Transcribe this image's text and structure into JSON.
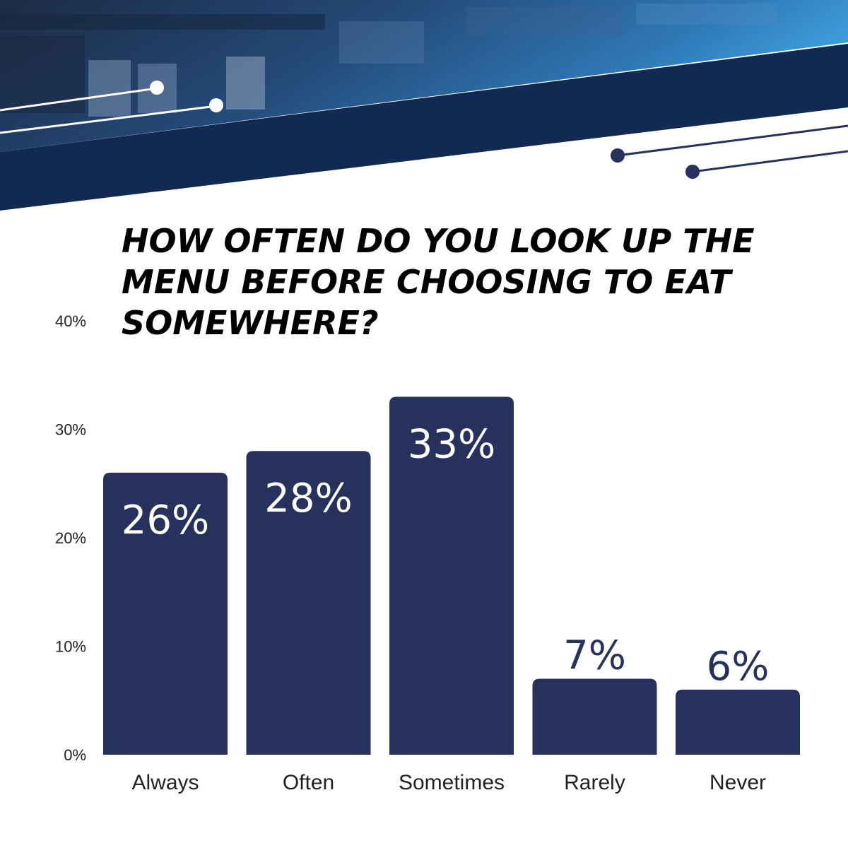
{
  "colors": {
    "bar": "#26325c",
    "header_navy": "#122a52",
    "label_inside": "#ffffff",
    "label_outside": "#26325c"
  },
  "header": {
    "image": "cafe-counter-photo"
  },
  "chart_data": {
    "type": "bar",
    "title": "HOW OFTEN DO YOU LOOK UP THE MENU BEFORE CHOOSING TO EAT SOMEWHERE?",
    "xlabel": "",
    "ylabel": "",
    "categories": [
      "Always",
      "Often",
      "Sometimes",
      "Rarely",
      "Never"
    ],
    "values": [
      26,
      28,
      33,
      7,
      6
    ],
    "data_labels": [
      "26%",
      "28%",
      "33%",
      "7%",
      "6%"
    ],
    "yticks": [
      0,
      10,
      20,
      30,
      40
    ],
    "ytick_labels": [
      "0%",
      "10%",
      "20%",
      "30%",
      "40%"
    ],
    "ylim": [
      0,
      40
    ],
    "grid": false,
    "legend": "none"
  }
}
